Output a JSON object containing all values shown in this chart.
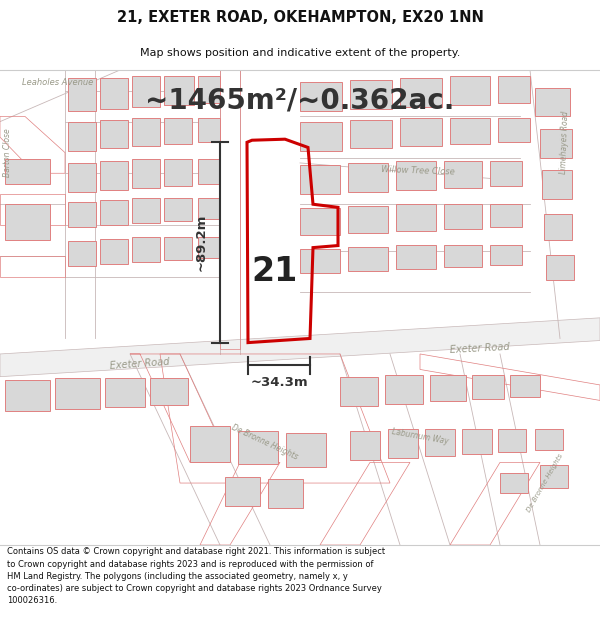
{
  "title_line1": "21, EXETER ROAD, OKEHAMPTON, EX20 1NN",
  "title_line2": "Map shows position and indicative extent of the property.",
  "area_text": "~1465m²/~0.362ac.",
  "dim1_text": "~89.2m",
  "dim2_text": "~34.3m",
  "label_21": "21",
  "footer_text": "Contains OS data © Crown copyright and database right 2021. This information is subject to Crown copyright and database rights 2023 and is reproduced with the permission of HM Land Registry. The polygons (including the associated geometry, namely x, y co-ordinates) are subject to Crown copyright and database rights 2023 Ordnance Survey 100026316.",
  "bg_color": "#ffffff",
  "map_bg": "#ffffff",
  "road_outline": "#c8b8b8",
  "road_fill": "#ffffff",
  "building_fill": "#d8d8d8",
  "building_stroke": "#e08080",
  "highlight_stroke": "#cc0000",
  "dim_line_color": "#333333",
  "title_color": "#111111",
  "footer_color": "#111111",
  "street_label_color": "#999988",
  "title_fontsize": 10.5,
  "subtitle_fontsize": 8,
  "area_fontsize": 20,
  "label_fontsize": 24,
  "dim_fontsize": 9.5
}
